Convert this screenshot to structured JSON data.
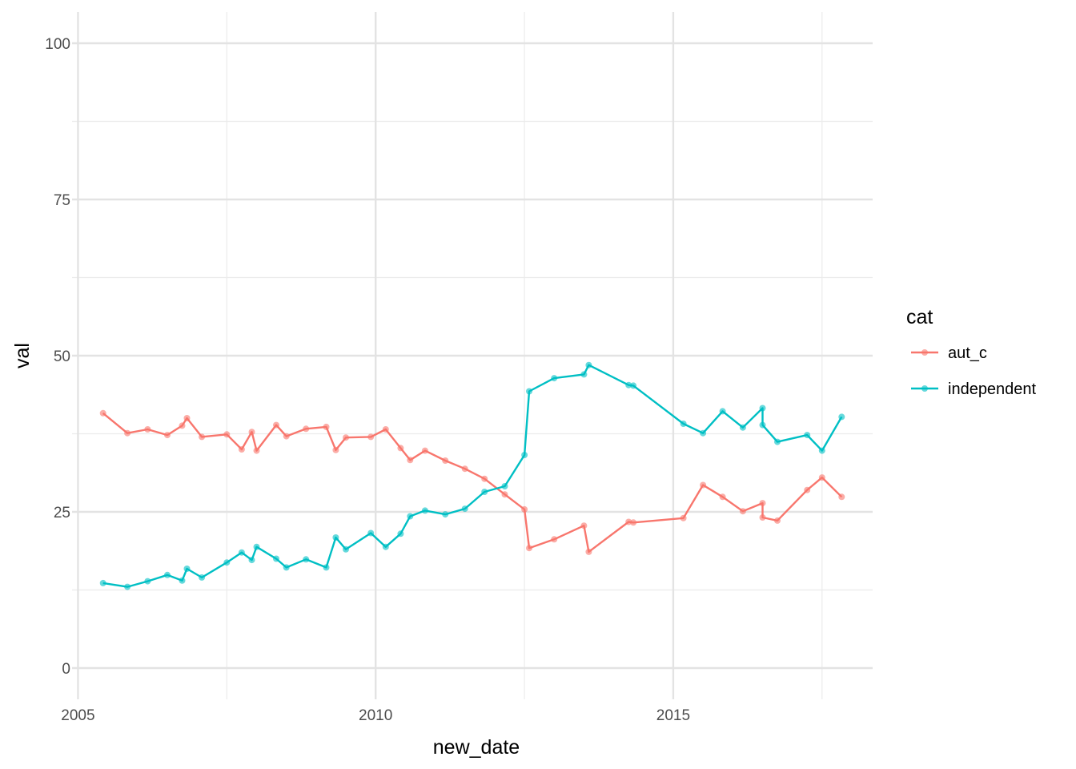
{
  "chart_data": {
    "type": "line",
    "xlabel": "new_date",
    "ylabel": "val",
    "xlim": [
      2004.9,
      2018.35
    ],
    "ylim": [
      -5,
      105
    ],
    "x_ticks": [
      2005,
      2010,
      2015
    ],
    "x_ticks_minor": [
      2007.5,
      2012.5,
      2017.5
    ],
    "y_ticks": [
      0,
      25,
      50,
      75,
      100
    ],
    "y_ticks_minor": [
      12.5,
      37.5,
      62.5,
      87.5
    ],
    "x_tick_labels": [
      "2005",
      "2010",
      "2015"
    ],
    "y_tick_labels": [
      "0",
      "25",
      "50",
      "75",
      "100"
    ],
    "grid": true,
    "legend": {
      "title": "cat",
      "position": "right"
    },
    "series": [
      {
        "name": "aut_c",
        "color": "#F8766D",
        "x": [
          2005.42,
          2005.83,
          2006.17,
          2006.5,
          2006.75,
          2006.83,
          2007.08,
          2007.5,
          2007.75,
          2007.92,
          2008.0,
          2008.33,
          2008.5,
          2008.83,
          2009.17,
          2009.33,
          2009.5,
          2009.92,
          2010.17,
          2010.42,
          2010.58,
          2010.83,
          2011.17,
          2011.5,
          2011.83,
          2012.17,
          2012.5,
          2012.58,
          2013.0,
          2013.5,
          2013.58,
          2014.25,
          2014.33,
          2015.17,
          2015.5,
          2015.83,
          2016.17,
          2016.5,
          2016.5,
          2016.75,
          2017.25,
          2017.5,
          2017.83
        ],
        "y": [
          40.8,
          37.6,
          38.2,
          37.3,
          38.8,
          40.0,
          37.0,
          37.4,
          35.0,
          37.8,
          34.8,
          38.9,
          37.1,
          38.3,
          38.6,
          34.9,
          36.9,
          37.0,
          38.2,
          35.2,
          33.3,
          34.8,
          33.2,
          31.9,
          30.3,
          27.8,
          25.4,
          19.2,
          20.6,
          22.8,
          18.6,
          23.4,
          23.3,
          24.0,
          29.3,
          27.4,
          25.1,
          26.4,
          24.1,
          23.6,
          28.5,
          30.5,
          27.4
        ]
      },
      {
        "name": "independent",
        "color": "#00BFC4",
        "x": [
          2005.42,
          2005.83,
          2006.17,
          2006.5,
          2006.75,
          2006.83,
          2007.08,
          2007.5,
          2007.75,
          2007.92,
          2008.0,
          2008.33,
          2008.5,
          2008.83,
          2009.17,
          2009.33,
          2009.5,
          2009.92,
          2010.17,
          2010.42,
          2010.58,
          2010.83,
          2011.17,
          2011.5,
          2011.83,
          2012.17,
          2012.5,
          2012.58,
          2013.0,
          2013.5,
          2013.58,
          2014.25,
          2014.33,
          2015.17,
          2015.5,
          2015.83,
          2016.17,
          2016.5,
          2016.5,
          2016.75,
          2017.25,
          2017.5,
          2017.83
        ],
        "y": [
          13.6,
          13.0,
          13.9,
          14.9,
          14.0,
          15.9,
          14.5,
          16.9,
          18.5,
          17.3,
          19.4,
          17.5,
          16.1,
          17.4,
          16.1,
          20.9,
          19.0,
          21.6,
          19.4,
          21.5,
          24.3,
          25.2,
          24.6,
          25.5,
          28.2,
          29.1,
          34.1,
          44.3,
          46.4,
          47.0,
          48.5,
          45.3,
          45.2,
          39.1,
          37.6,
          41.1,
          38.5,
          41.6,
          38.9,
          36.2,
          37.3,
          34.8,
          40.2
        ]
      }
    ]
  }
}
